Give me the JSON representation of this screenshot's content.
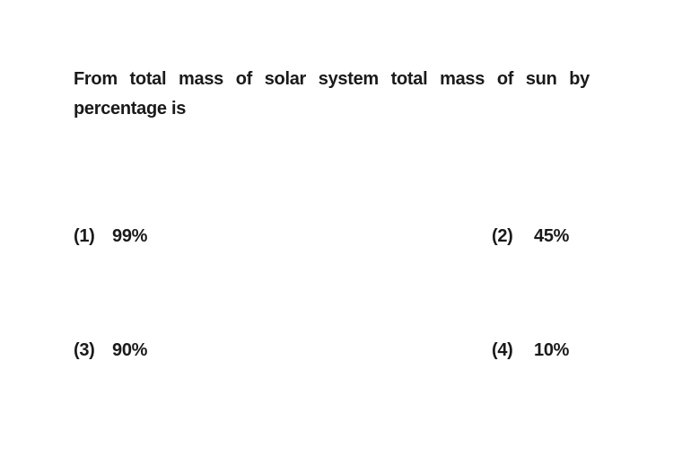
{
  "question": "From total mass of solar system total mass of sun by percentage is",
  "options": [
    {
      "number": "(1)",
      "text": "99%"
    },
    {
      "number": "(2)",
      "text": "45%"
    },
    {
      "number": "(3)",
      "text": "90%"
    },
    {
      "number": "(4)",
      "text": "10%"
    }
  ]
}
